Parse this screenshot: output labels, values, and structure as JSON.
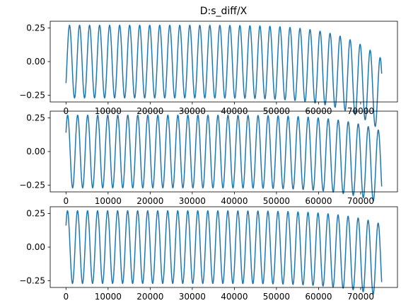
{
  "title": "D:s_diff/X",
  "chart_data": [
    {
      "type": "line",
      "title": "D:s_diff/X",
      "xlabel": "",
      "ylabel": "",
      "xlim": [
        -3750,
        78750
      ],
      "ylim": [
        -0.3,
        0.3
      ],
      "xticks": [
        0,
        10000,
        20000,
        30000,
        40000,
        50000,
        60000,
        70000
      ],
      "xtick_labels": [
        "0",
        "10000",
        "20000",
        "30000",
        "40000",
        "50000",
        "60000",
        "70000"
      ],
      "yticks": [
        0.25,
        0.0,
        -0.25
      ],
      "ytick_labels": [
        "0.25",
        "0.00",
        "−0.25"
      ],
      "grid": false,
      "series": [
        {
          "x_start": 0,
          "x_end": 75000,
          "amplitude": 0.27,
          "cycles": 31.5,
          "y_start": -0.16,
          "y_end": -0.09,
          "color": "#1f77b4"
        }
      ]
    },
    {
      "type": "line",
      "title": "",
      "xlabel": "",
      "ylabel": "",
      "xlim": [
        -3750,
        78750
      ],
      "ylim": [
        -0.3,
        0.3
      ],
      "xticks": [
        0,
        10000,
        20000,
        30000,
        40000,
        50000,
        60000,
        70000
      ],
      "xtick_labels": [
        "0",
        "10000",
        "20000",
        "30000",
        "40000",
        "50000",
        "60000",
        "70000"
      ],
      "yticks": [
        0.25,
        0.0,
        -0.25
      ],
      "ytick_labels": [
        "0.25",
        "0.00",
        "−0.25"
      ],
      "grid": false,
      "series": [
        {
          "x_start": 0,
          "x_end": 75000,
          "amplitude": 0.27,
          "cycles": 31.5,
          "y_start": 0.14,
          "y_end": -0.26,
          "color": "#1f77b4"
        }
      ]
    },
    {
      "type": "line",
      "title": "",
      "xlabel": "",
      "ylabel": "",
      "xlim": [
        -3750,
        78750
      ],
      "ylim": [
        -0.3,
        0.3
      ],
      "xticks": [
        0,
        10000,
        20000,
        30000,
        40000,
        50000,
        60000,
        70000
      ],
      "xtick_labels": [
        "0",
        "10000",
        "20000",
        "30000",
        "40000",
        "50000",
        "60000",
        "70000"
      ],
      "yticks": [
        0.25,
        0.0,
        -0.25
      ],
      "ytick_labels": [
        "0.25",
        "0.00",
        "−0.25"
      ],
      "grid": false,
      "series": [
        {
          "x_start": 0,
          "x_end": 75000,
          "amplitude": 0.27,
          "cycles": 31.5,
          "y_start": 0.16,
          "y_end": -0.26,
          "color": "#1f77b4"
        }
      ]
    }
  ]
}
